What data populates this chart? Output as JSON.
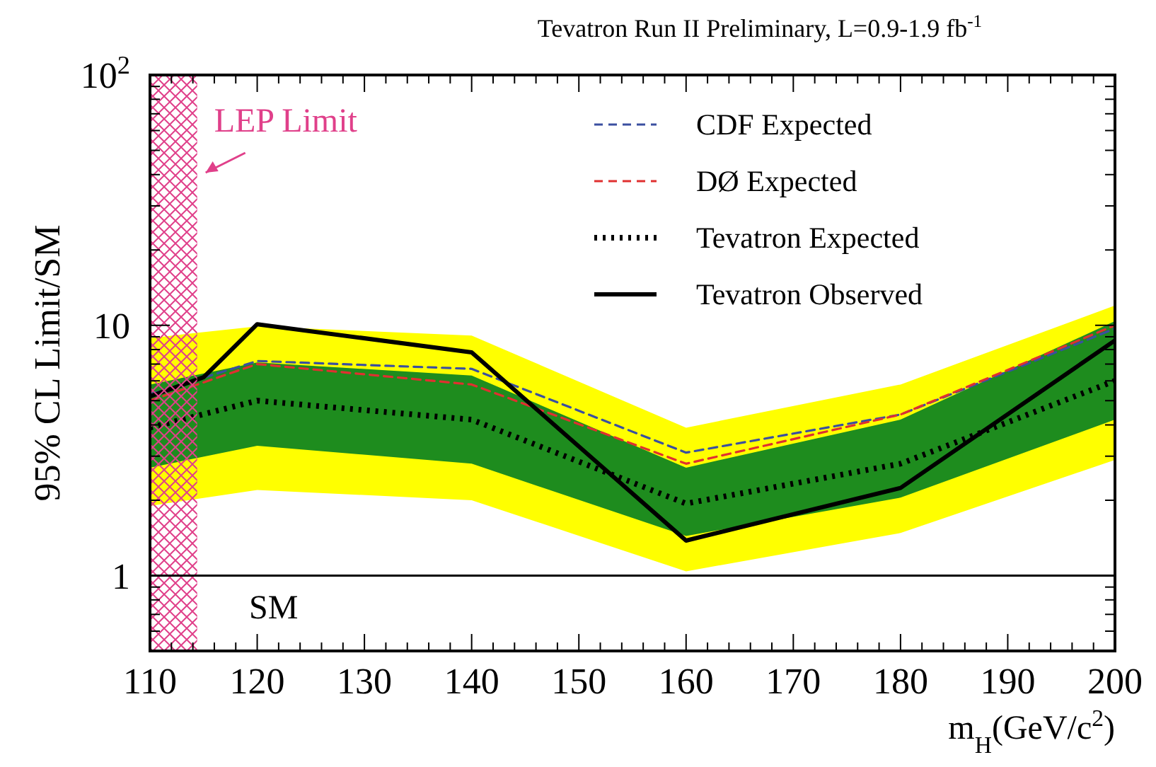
{
  "chart_data": {
    "type": "line",
    "title": "Tevatron Run II Preliminary, L=0.9-1.9 fb$^{-1}$",
    "xlabel": "m$_{H}$(GeV/c$^{2}$)",
    "ylabel": "95% CL Limit/SM",
    "log": "y",
    "legend": "top right",
    "xlim": [
      110,
      200
    ],
    "ylim": [
      0.5,
      100
    ],
    "xticks": [
      110,
      {
        "value": 112,
        "label": null
      },
      {
        "value": 114,
        "label": null
      },
      {
        "value": 116,
        "label": null
      },
      {
        "value": 118,
        "label": null
      },
      120,
      {
        "value": 122,
        "label": null
      },
      {
        "value": 124,
        "label": null
      },
      {
        "value": 126,
        "label": null
      },
      {
        "value": 128,
        "label": null
      },
      130,
      {
        "value": 132,
        "label": null
      },
      {
        "value": 134,
        "label": null
      },
      {
        "value": 136,
        "label": null
      },
      {
        "value": 138,
        "label": null
      },
      140,
      {
        "value": 142,
        "label": null
      },
      {
        "value": 144,
        "label": null
      },
      {
        "value": 146,
        "label": null
      },
      {
        "value": 148,
        "label": null
      },
      150,
      {
        "value": 152,
        "label": null
      },
      {
        "value": 154,
        "label": null
      },
      {
        "value": 156,
        "label": null
      },
      {
        "value": 158,
        "label": null
      },
      160,
      {
        "value": 162,
        "label": null
      },
      {
        "value": 164,
        "label": null
      },
      {
        "value": 166,
        "label": null
      },
      {
        "value": 168,
        "label": null
      },
      170,
      {
        "value": 172,
        "label": null
      },
      {
        "value": 174,
        "label": null
      },
      {
        "value": 176,
        "label": null
      },
      {
        "value": 178,
        "label": null
      },
      180,
      {
        "value": 182,
        "label": null
      },
      {
        "value": 184,
        "label": null
      },
      {
        "value": 186,
        "label": null
      },
      {
        "value": 188,
        "label": null
      },
      190,
      {
        "value": 192,
        "label": null
      },
      {
        "value": 194,
        "label": null
      },
      {
        "value": 196,
        "label": null
      },
      {
        "value": 198,
        "label": null
      },
      200
    ],
    "yticks": [
      {
        "value": 0.6,
        "label": null
      },
      {
        "value": 0.7,
        "label": null
      },
      {
        "value": 0.8,
        "label": null
      },
      {
        "value": 0.9,
        "label": null
      },
      1,
      {
        "value": 2,
        "label": null
      },
      {
        "value": 3,
        "label": null
      },
      {
        "value": 4,
        "label": null
      },
      {
        "value": 5,
        "label": null
      },
      {
        "value": 6,
        "label": null
      },
      {
        "value": 7,
        "label": null
      },
      {
        "value": 8,
        "label": null
      },
      {
        "value": 9,
        "label": null
      },
      10,
      {
        "value": 20,
        "label": null
      },
      {
        "value": 30,
        "label": null
      },
      {
        "value": 40,
        "label": null
      },
      {
        "value": 50,
        "label": null
      },
      {
        "value": 60,
        "label": null
      },
      {
        "value": 70,
        "label": null
      },
      {
        "value": 80,
        "label": null
      },
      {
        "value": 90,
        "label": null
      },
      {
        "value": 100,
        "label": "10$^{2}$"
      }
    ],
    "series": [
      {
        "color": "#ffff00",
        "x": [
          110,
          120,
          140,
          160,
          180,
          200
        ],
        "values": [
          null,
          null,
          null,
          null,
          null,
          null
        ],
        "lower": [
          1.9,
          2.2,
          2.0,
          1.04,
          1.48,
          2.9
        ],
        "upper": [
          8.9,
          9.9,
          9.1,
          3.9,
          5.8,
          12
        ]
      },
      {
        "color": "#1e8c1e",
        "x": [
          110,
          120,
          140,
          160,
          180,
          200
        ],
        "values": [
          null,
          null,
          null,
          null,
          null,
          null
        ],
        "lower": [
          2.7,
          3.3,
          2.8,
          1.44,
          2.05,
          4.2
        ],
        "upper": [
          5.8,
          7.1,
          6.3,
          2.7,
          4.2,
          10.4
        ]
      },
      {
        "name": "CDF Expected",
        "color": "#3a4fa0",
        "line_style": "dashed",
        "x": [
          110,
          120,
          140,
          160,
          180,
          200
        ],
        "values": [
          5.3,
          7.2,
          6.7,
          3.1,
          4.4,
          9.7
        ]
      },
      {
        "name": "DØ Expected",
        "color": "#e03030",
        "line_style": "dashed",
        "x": [
          110,
          120,
          140,
          160,
          180,
          200
        ],
        "values": [
          5.0,
          7.0,
          5.8,
          2.8,
          4.4,
          10
        ]
      },
      {
        "name": "Tevatron Expected",
        "color": "#000000",
        "line_style": "dotted",
        "x": [
          110,
          120,
          140,
          160,
          180,
          200
        ],
        "values": [
          3.9,
          5.0,
          4.2,
          1.94,
          2.8,
          6.0
        ]
      },
      {
        "name": "Tevatron Observed",
        "color": "#000000",
        "line_style": "solid",
        "x": [
          110,
          115,
          120,
          140,
          160,
          180,
          200
        ],
        "values": [
          5.2,
          6.2,
          10.1,
          7.8,
          1.38,
          2.24,
          8.7
        ]
      }
    ],
    "bands": [
      {
        "axis": "x",
        "from": 110,
        "to": 114.4,
        "label": "LEP Limit",
        "color": "#e0408a"
      }
    ],
    "ref_lines": [
      {
        "axis": "y",
        "value": 1,
        "label": "SM",
        "color": "#000000"
      }
    ]
  }
}
